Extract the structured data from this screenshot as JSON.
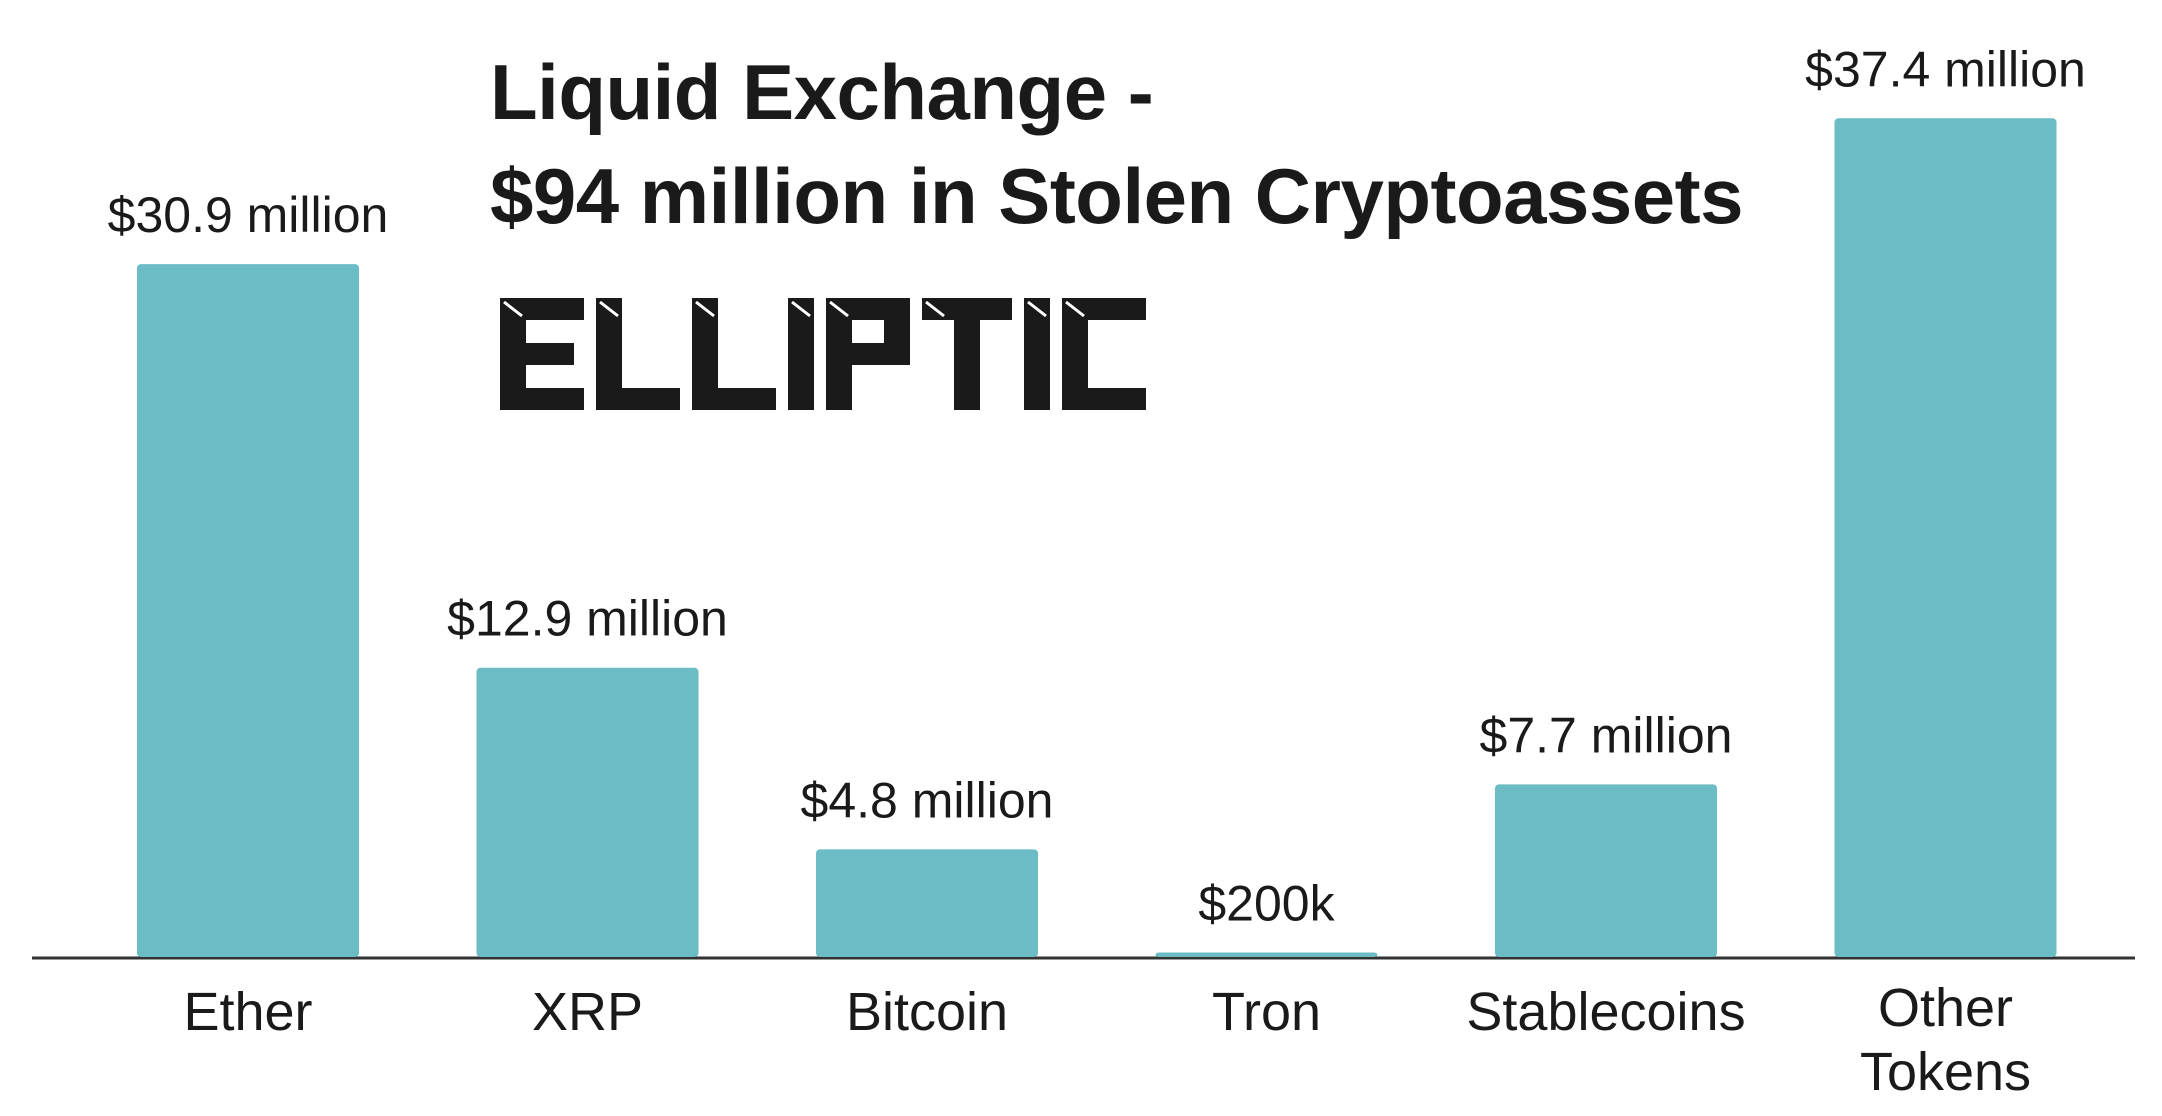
{
  "title_lines": [
    "Liquid Exchange -",
    "$94 million in Stolen Cryptoassets"
  ],
  "logo_text": "ELLIPTIC",
  "colors": {
    "bar": "#6bbcc4",
    "text": "#1a1a1a",
    "axis": "#333333",
    "background": "#ffffff"
  },
  "chart_data": {
    "type": "bar",
    "title": "Liquid Exchange - $94 million in Stolen Cryptoassets",
    "xlabel": "",
    "ylabel": "",
    "ylim": [
      0,
      40
    ],
    "grid": false,
    "unit": "million USD",
    "categories": [
      "Ether",
      "XRP",
      "Bitcoin",
      "Tron",
      "Stablecoins",
      "Other Tokens"
    ],
    "values": [
      30.9,
      12.9,
      4.8,
      0.2,
      7.7,
      37.4
    ],
    "data_labels": [
      "$30.9 million",
      "$12.9 million",
      "$4.8 million",
      "$200k",
      "$7.7 million",
      "$37.4 million"
    ]
  }
}
